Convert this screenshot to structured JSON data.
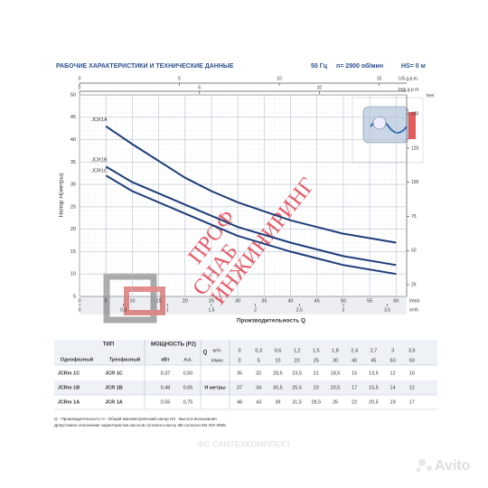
{
  "header": {
    "title": "РАБОЧИЕ ХАРАКТЕРИСТИКИ И ТЕХНИЧЕСКИЕ ДАННЫЕ",
    "specs": [
      "50 Гц",
      "n= 2900 об/мин",
      "HS= 0 м"
    ]
  },
  "chart_data": {
    "type": "line",
    "x_label": "Производительность Q",
    "x_unit": "l/min",
    "y_label": "Напор H(метры)",
    "x": [
      5,
      10,
      20,
      25,
      30,
      40,
      45,
      50,
      60
    ],
    "series": [
      {
        "name": "JCR1A",
        "color": "#1d3d78",
        "values": [
          43,
          39,
          31.5,
          28.5,
          26,
          22,
          20.5,
          19,
          17
        ]
      },
      {
        "name": "JCR1B",
        "color": "#1d3d78",
        "values": [
          34,
          30.5,
          25.5,
          23,
          20.5,
          17,
          15.5,
          14,
          12
        ]
      },
      {
        "name": "JCR1C",
        "color": "#1d3d78",
        "values": [
          32,
          28.5,
          23.5,
          21,
          18.5,
          15,
          13.5,
          12,
          10
        ]
      }
    ],
    "xlim": [
      0,
      62
    ],
    "xticks": [
      0,
      5,
      10,
      15,
      20,
      25,
      30,
      35,
      40,
      45,
      50,
      55,
      60
    ],
    "ylim": [
      5,
      50
    ],
    "yticks": [
      5,
      10,
      15,
      20,
      25,
      30,
      35,
      40,
      45,
      50
    ],
    "y2label": "feet",
    "y2lim": [
      16.4,
      164
    ],
    "y2ticks": [
      25,
      50,
      75,
      100,
      125,
      150
    ],
    "x_m3h": {
      "unit": "m³/h",
      "lim": [
        0,
        3.72
      ],
      "ticks": [
        0,
        {
          "value": 0.5,
          "label": "0,5"
        },
        1,
        {
          "value": 1.5,
          "label": "1,5"
        },
        2,
        {
          "value": 2.5,
          "label": "2,5"
        },
        3,
        {
          "value": 3.5,
          "label": "3,5"
        }
      ]
    },
    "x_usgpm": {
      "unit": "US g.p.m.",
      "lim": [
        0,
        16.38
      ],
      "ticks": [
        0,
        5,
        10,
        15
      ]
    },
    "x_impgpm": {
      "unit": "Imp g.p.m.",
      "lim": [
        0,
        13.64
      ],
      "ticks": [
        0,
        5,
        10
      ]
    },
    "grid": true
  },
  "table": {
    "type_header": "ТИП",
    "power_header": "МОЩНОСТЬ (P2)",
    "q_label": "Q",
    "h_label": "H метры",
    "q_units": [
      "м³/ч",
      "л/мин"
    ],
    "sub_headers": [
      "Однофазный",
      "Трехфазный",
      "кВт",
      "л.с."
    ],
    "q_m3h": [
      "0",
      "0,3",
      "0,6",
      "1,2",
      "1,5",
      "1,8",
      "2,4",
      "2,7",
      "3",
      "3,6"
    ],
    "q_lmin": [
      "0",
      "5",
      "10",
      "20",
      "25",
      "30",
      "40",
      "45",
      "50",
      "60"
    ],
    "rows": [
      {
        "single": "JCRm 1C",
        "three": "JCR 1C",
        "kw": "0,37",
        "hp": "0,50",
        "h": [
          "35",
          "32",
          "28,5",
          "23,5",
          "21",
          "18,5",
          "15",
          "13,5",
          "12",
          "10"
        ]
      },
      {
        "single": "JCRm 1B",
        "three": "JCR 1B",
        "kw": "0,48",
        "hp": "0,65",
        "h": [
          "37",
          "34",
          "30,5",
          "25,5",
          "23",
          "20,5",
          "17",
          "15,5",
          "14",
          "12"
        ]
      },
      {
        "single": "JCRm 1A",
        "three": "JCR 1A",
        "kw": "0,55",
        "hp": "0,75",
        "h": [
          "48",
          "43",
          "39",
          "31,5",
          "28,5",
          "26",
          "22",
          "20,5",
          "19",
          "17"
        ]
      }
    ]
  },
  "footnotes": [
    "Q - Производительность   H - Общий манометрический напор   HS - Высота всасывания",
    "Допустимое отклонение характеристик насосов согласно классу 3B согласно EN ISO 9906."
  ],
  "watermarks": [
    "ПРОФ",
    "СНАБ",
    "ИНЖИНИРИНГ",
    "ФС САНТЕХКОМПЛЕКТ",
    "Avito"
  ]
}
